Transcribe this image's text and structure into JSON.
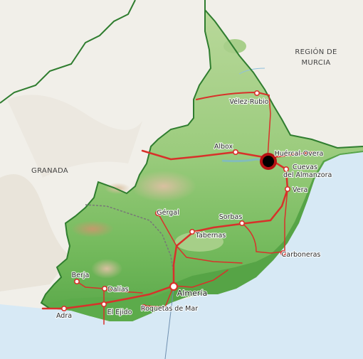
{
  "regions": {
    "murcia_line1": "REGIÓN DE",
    "murcia_line2": "MURCIA",
    "granada": "GRANADA"
  },
  "places": {
    "velez_rubio": "Vélez-Rubio",
    "albox": "Albox",
    "huercal_overa": "Huércal-Overa",
    "cuevas_line1": "Cuevas",
    "cuevas_line2": "del Almanzora",
    "vera": "Vera",
    "gergal": "Gérgal",
    "sorbas": "Sorbas",
    "tabernas": "Tabernas",
    "carboneras": "Carboneras",
    "berja": "Berja",
    "dalias": "Dalías",
    "almeria": "Almería",
    "adra": "Adra",
    "el_ejido": "El Ejido",
    "roquetas": "Roquetas de Mar"
  },
  "colors": {
    "sea": "#d7e9f5",
    "land_outside": "#f3f1ec",
    "province_low": "#5fae4c",
    "province_high": "#b6d796",
    "border": "#2f7d2f",
    "road": "#d8312a",
    "marker": "#000000"
  }
}
